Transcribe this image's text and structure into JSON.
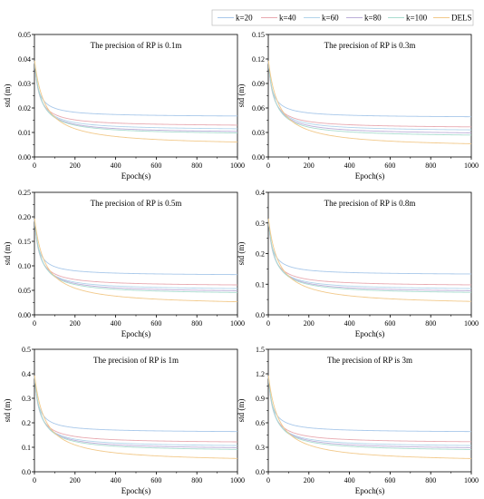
{
  "legend": {
    "entries": [
      {
        "label": "k=20",
        "color": "#a8c8ea"
      },
      {
        "label": "k=40",
        "color": "#e8a9b0"
      },
      {
        "label": "k=60",
        "color": "#b2d4ea"
      },
      {
        "label": "k=80",
        "color": "#bcaed9"
      },
      {
        "label": "k=100",
        "color": "#a9dccf"
      },
      {
        "label": "DELS",
        "color": "#f2c98a"
      }
    ]
  },
  "chart_data": [
    {
      "type": "line",
      "title": "The precision of RP is 0.1m",
      "xlabel": "Epoch(s)",
      "ylabel": "std (m)",
      "xlim": [
        0,
        1000
      ],
      "ylim": [
        0,
        0.05
      ],
      "xticks": [
        "0",
        "200",
        "400",
        "600",
        "800",
        "1000"
      ],
      "yticks": [
        "0.00",
        "0.01",
        "0.02",
        "0.03",
        "0.04",
        "0.05"
      ],
      "series": [
        {
          "name": "k=20",
          "start": 0.04,
          "plateau": 0.0163,
          "tau": 18
        },
        {
          "name": "k=40",
          "start": 0.04,
          "plateau": 0.0124,
          "tau": 22
        },
        {
          "name": "k=60",
          "start": 0.04,
          "plateau": 0.0108,
          "tau": 25
        },
        {
          "name": "k=80",
          "start": 0.04,
          "plateau": 0.0096,
          "tau": 28
        },
        {
          "name": "k=100",
          "start": 0.04,
          "plateau": 0.0089,
          "tau": 30
        },
        {
          "name": "DELS",
          "start": 0.04,
          "plateau": 0.0044,
          "tau": 50
        }
      ]
    },
    {
      "type": "line",
      "title": "The precision of RP is 0.3m",
      "xlabel": "Epoch(s)",
      "ylabel": "std (m)",
      "xlim": [
        0,
        1000
      ],
      "ylim": [
        0,
        0.15
      ],
      "xticks": [
        "0",
        "200",
        "400",
        "600",
        "800",
        "1000"
      ],
      "yticks": [
        "0.00",
        "0.03",
        "0.06",
        "0.09",
        "0.12",
        "0.15"
      ],
      "series": [
        {
          "name": "k=20",
          "start": 0.12,
          "plateau": 0.048,
          "tau": 18
        },
        {
          "name": "k=40",
          "start": 0.12,
          "plateau": 0.035,
          "tau": 22
        },
        {
          "name": "k=60",
          "start": 0.12,
          "plateau": 0.031,
          "tau": 25
        },
        {
          "name": "k=80",
          "start": 0.12,
          "plateau": 0.027,
          "tau": 28
        },
        {
          "name": "k=100",
          "start": 0.12,
          "plateau": 0.024,
          "tau": 30
        },
        {
          "name": "DELS",
          "start": 0.12,
          "plateau": 0.011,
          "tau": 50
        }
      ]
    },
    {
      "type": "line",
      "title": "The precision of RP is 0.5m",
      "xlabel": "Epoch(s)",
      "ylabel": "std (m)",
      "xlim": [
        0,
        1000
      ],
      "ylim": [
        0,
        0.25
      ],
      "xticks": [
        "0",
        "200",
        "400",
        "600",
        "800",
        "1000"
      ],
      "yticks": [
        "0.00",
        "0.05",
        "0.10",
        "0.15",
        "0.20",
        "0.25"
      ],
      "series": [
        {
          "name": "k=20",
          "start": 0.2,
          "plateau": 0.08,
          "tau": 18
        },
        {
          "name": "k=40",
          "start": 0.2,
          "plateau": 0.058,
          "tau": 22
        },
        {
          "name": "k=60",
          "start": 0.2,
          "plateau": 0.05,
          "tau": 25
        },
        {
          "name": "k=80",
          "start": 0.2,
          "plateau": 0.045,
          "tau": 28
        },
        {
          "name": "k=100",
          "start": 0.2,
          "plateau": 0.041,
          "tau": 30
        },
        {
          "name": "DELS",
          "start": 0.2,
          "plateau": 0.018,
          "tau": 50
        }
      ]
    },
    {
      "type": "line",
      "title": "The precision of RP is 0.8m",
      "xlabel": "Epoch(s)",
      "ylabel": "std (m)",
      "xlim": [
        0,
        1000
      ],
      "ylim": [
        0,
        0.4
      ],
      "xticks": [
        "0",
        "200",
        "400",
        "600",
        "800",
        "1000"
      ],
      "yticks": [
        "0.0",
        "0.1",
        "0.2",
        "0.3",
        "0.4"
      ],
      "series": [
        {
          "name": "k=20",
          "start": 0.32,
          "plateau": 0.13,
          "tau": 18
        },
        {
          "name": "k=40",
          "start": 0.32,
          "plateau": 0.093,
          "tau": 22
        },
        {
          "name": "k=60",
          "start": 0.32,
          "plateau": 0.08,
          "tau": 25
        },
        {
          "name": "k=80",
          "start": 0.32,
          "plateau": 0.072,
          "tau": 28
        },
        {
          "name": "k=100",
          "start": 0.32,
          "plateau": 0.066,
          "tau": 30
        },
        {
          "name": "DELS",
          "start": 0.32,
          "plateau": 0.03,
          "tau": 50
        }
      ]
    },
    {
      "type": "line",
      "title": "The precision of RP is 1m",
      "xlabel": "Epoch(s)",
      "ylabel": "std (m)",
      "xlim": [
        0,
        1000
      ],
      "ylim": [
        0,
        0.5
      ],
      "xticks": [
        "0",
        "200",
        "400",
        "600",
        "800",
        "1000"
      ],
      "yticks": [
        "0.0",
        "0.1",
        "0.2",
        "0.3",
        "0.4",
        "0.5"
      ],
      "series": [
        {
          "name": "k=20",
          "start": 0.4,
          "plateau": 0.16,
          "tau": 18
        },
        {
          "name": "k=40",
          "start": 0.4,
          "plateau": 0.116,
          "tau": 22
        },
        {
          "name": "k=60",
          "start": 0.4,
          "plateau": 0.1,
          "tau": 25
        },
        {
          "name": "k=80",
          "start": 0.4,
          "plateau": 0.09,
          "tau": 28
        },
        {
          "name": "k=100",
          "start": 0.4,
          "plateau": 0.082,
          "tau": 30
        },
        {
          "name": "DELS",
          "start": 0.4,
          "plateau": 0.037,
          "tau": 50
        }
      ]
    },
    {
      "type": "line",
      "title": "The precision of RP is 3m",
      "xlabel": "Epoch(s)",
      "ylabel": "std (m)",
      "xlim": [
        0,
        1000
      ],
      "ylim": [
        0,
        1.5
      ],
      "xticks": [
        "0",
        "200",
        "400",
        "600",
        "800",
        "1000"
      ],
      "yticks": [
        "0.0",
        "0.3",
        "0.6",
        "0.9",
        "1.2",
        "1.5"
      ],
      "series": [
        {
          "name": "k=20",
          "start": 1.2,
          "plateau": 0.48,
          "tau": 18
        },
        {
          "name": "k=40",
          "start": 1.2,
          "plateau": 0.35,
          "tau": 22
        },
        {
          "name": "k=60",
          "start": 1.2,
          "plateau": 0.3,
          "tau": 25
        },
        {
          "name": "k=80",
          "start": 1.2,
          "plateau": 0.27,
          "tau": 28
        },
        {
          "name": "k=100",
          "start": 1.2,
          "plateau": 0.245,
          "tau": 30
        },
        {
          "name": "DELS",
          "start": 1.2,
          "plateau": 0.11,
          "tau": 50
        }
      ]
    }
  ]
}
